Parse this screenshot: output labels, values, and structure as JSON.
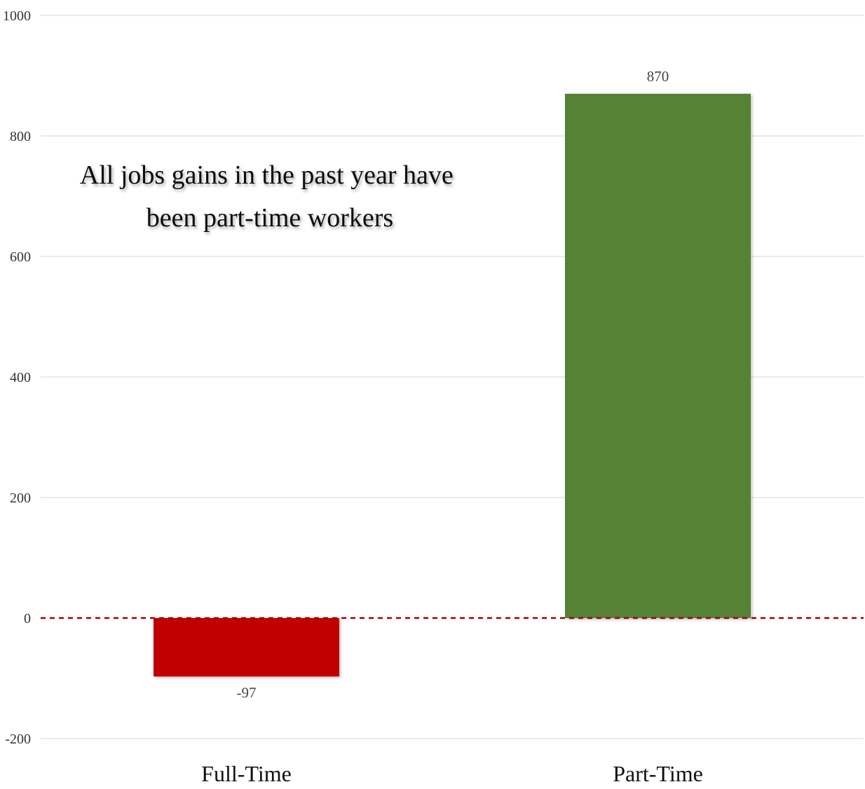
{
  "chart_data": {
    "type": "bar",
    "categories": [
      "Full-Time",
      "Part-Time"
    ],
    "values": [
      -97,
      870
    ],
    "colors": [
      "#c00000",
      "#548235"
    ],
    "data_labels": [
      "-97",
      "870"
    ],
    "annotation": [
      "All jobs gains in the past year have",
      "been part-time workers"
    ],
    "ylim": [
      -200,
      1000
    ],
    "yticks": [
      -200,
      0,
      200,
      400,
      600,
      800,
      1000
    ],
    "ytick_labels": [
      "-200",
      "0",
      "200",
      "400",
      "600",
      "800",
      "1000"
    ],
    "zero_line_color": "#a00000",
    "grid": true,
    "title": "",
    "xlabel": "",
    "ylabel": ""
  }
}
